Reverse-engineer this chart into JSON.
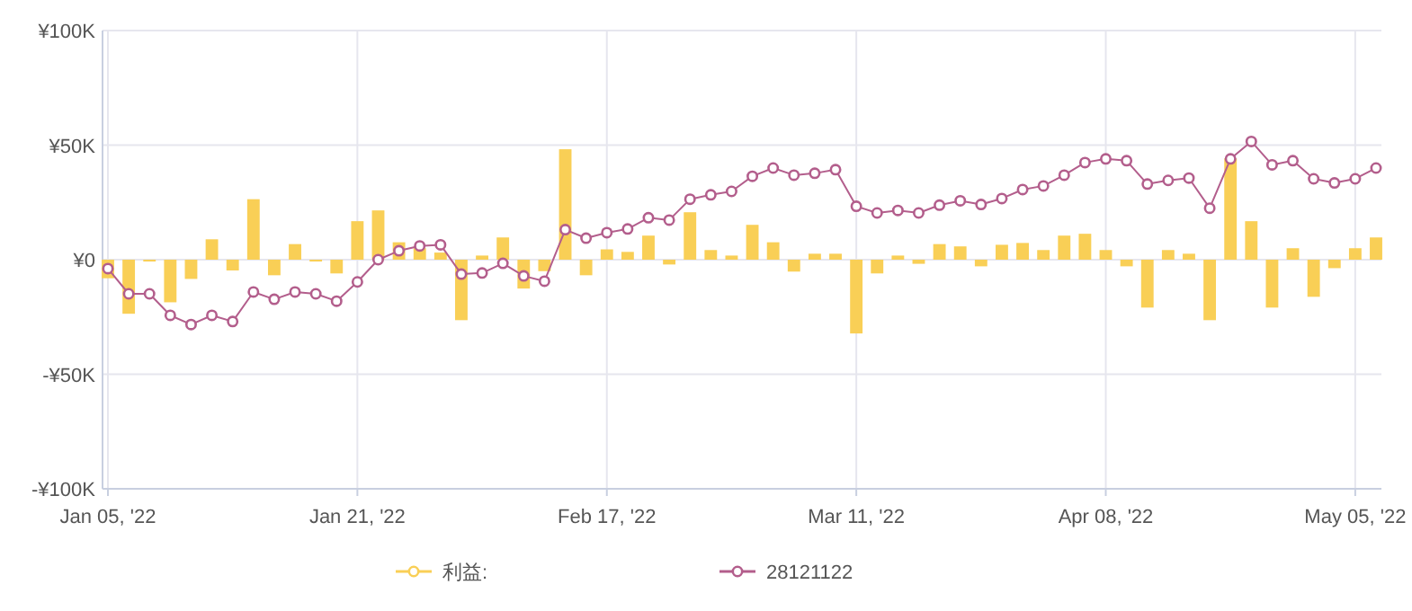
{
  "chart_data": {
    "type": "bar",
    "categories": [
      "Jan 05, '22",
      null,
      null,
      null,
      null,
      null,
      null,
      null,
      null,
      null,
      null,
      null,
      "Jan 21, '22",
      null,
      null,
      null,
      null,
      null,
      null,
      null,
      null,
      null,
      null,
      null,
      "Feb 17, '22",
      null,
      null,
      null,
      null,
      null,
      null,
      null,
      null,
      null,
      null,
      null,
      "Mar 11, '22",
      null,
      null,
      null,
      null,
      null,
      null,
      null,
      null,
      null,
      null,
      null,
      "Apr 08, '22",
      null,
      null,
      null,
      null,
      null,
      null,
      null,
      null,
      null,
      null,
      null,
      "May 05, '22",
      null
    ],
    "series": [
      {
        "name": "利益:",
        "type": "bar",
        "color": "#f9cf56",
        "values": [
          -8.1,
          -23.6,
          -0.8,
          -18.6,
          -8.4,
          8.9,
          -4.7,
          26.4,
          -6.8,
          6.8,
          -0.8,
          -6,
          16.8,
          21.5,
          7.6,
          5,
          3.1,
          -26.4,
          1.8,
          9.7,
          -12.6,
          -5,
          48.2,
          -6.8,
          4.5,
          3.4,
          10.5,
          -2.1,
          20.7,
          4.2,
          1.8,
          15.2,
          7.6,
          -5.2,
          2.6,
          2.6,
          -32.2,
          -6,
          1.8,
          -1.8,
          6.8,
          5.8,
          -2.9,
          6.5,
          7.3,
          4.2,
          10.5,
          11.3,
          4.2,
          -2.9,
          -20.9,
          4.2,
          2.6,
          -26.4,
          44.2,
          16.8,
          -20.9,
          5,
          -16.2,
          -3.7,
          5,
          9.7
        ]
      },
      {
        "name": "28121122",
        "type": "line",
        "color": "#b35e8c",
        "values": [
          -3.9,
          -14.9,
          -14.9,
          -24.3,
          -28.3,
          -24.3,
          -27,
          -14.1,
          -17.3,
          -14.1,
          -14.9,
          -18.1,
          -9.7,
          0,
          3.9,
          6,
          6.5,
          -6.3,
          -5.8,
          -1.6,
          -7.1,
          -9.4,
          13.1,
          9.4,
          11.8,
          13.4,
          18.3,
          17.3,
          26.4,
          28.3,
          29.8,
          36.4,
          40,
          36.9,
          37.7,
          39.3,
          23.3,
          20.4,
          21.5,
          20.4,
          23.8,
          25.7,
          24.1,
          26.7,
          30.6,
          32.2,
          36.9,
          42.4,
          44,
          43.2,
          33,
          34.6,
          35.6,
          22.5,
          44,
          51.6,
          41.4,
          43.2,
          35.3,
          33.5,
          35.3,
          40
        ]
      }
    ],
    "ylim": [
      -100,
      100
    ],
    "yticks": [
      {
        "value": -100,
        "label": "-¥100K"
      },
      {
        "value": -50,
        "label": "-¥50K"
      },
      {
        "value": 0,
        "label": "¥0"
      },
      {
        "value": 50,
        "label": "¥50K"
      },
      {
        "value": 100,
        "label": "¥100K"
      }
    ],
    "grid": true,
    "legend": "bottom",
    "marker": "circle",
    "line_style": "solid"
  }
}
